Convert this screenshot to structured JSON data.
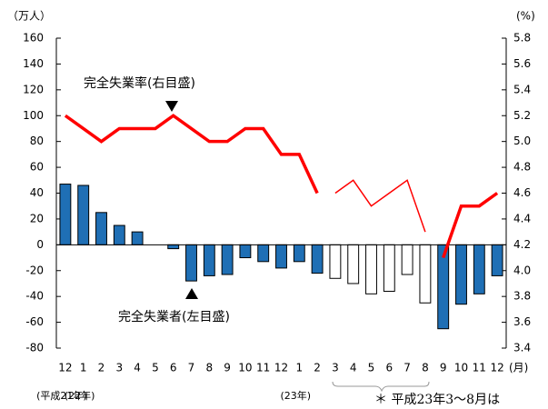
{
  "chart_data": {
    "type": "bar-line",
    "ylabel": "（万人）",
    "y2label": "(%)",
    "xunit": "(月)",
    "categories": [
      "12",
      "1",
      "2",
      "3",
      "4",
      "5",
      "6",
      "7",
      "8",
      "9",
      "10",
      "11",
      "12",
      "1",
      "2",
      "3",
      "4",
      "5",
      "6",
      "7",
      "8",
      "9",
      "10",
      "11",
      "12"
    ],
    "year_labels": [
      {
        "index": 0,
        "label": "(平成21年)"
      },
      {
        "index": 1,
        "label": "(22年)"
      },
      {
        "index": 13,
        "label": "(23年)"
      }
    ],
    "series": [
      {
        "name": "完全失業者(左目盛)",
        "kind": "bar",
        "color": "#1f6fb5",
        "colors": [
          "#1f6fb5",
          "#1f6fb5",
          "#1f6fb5",
          "#1f6fb5",
          "#1f6fb5",
          "#1f6fb5",
          "#1f6fb5",
          "#1f6fb5",
          "#1f6fb5",
          "#1f6fb5",
          "#1f6fb5",
          "#1f6fb5",
          "#1f6fb5",
          "#1f6fb5",
          "#1f6fb5",
          "#ffffff",
          "#ffffff",
          "#ffffff",
          "#ffffff",
          "#ffffff",
          "#ffffff",
          "#1f6fb5",
          "#1f6fb5",
          "#1f6fb5",
          "#1f6fb5"
        ],
        "values": [
          47,
          46,
          25,
          15,
          10,
          0,
          -3,
          -28,
          -24,
          -23,
          -10,
          -13,
          -18,
          -13,
          -22,
          -26,
          -30,
          -38,
          -36,
          -23,
          -45,
          -65,
          -46,
          -38,
          -24
        ]
      },
      {
        "name": "完全失業率(右目盛)",
        "kind": "line",
        "axis": "y2",
        "color": "#ff0000",
        "width": 3.5,
        "values": [
          5.2,
          5.1,
          5.0,
          5.1,
          5.1,
          5.1,
          5.2,
          5.1,
          5.0,
          5.0,
          5.1,
          5.1,
          4.9,
          4.9,
          4.6,
          null,
          null,
          null,
          null,
          null,
          null,
          4.1,
          4.5,
          4.5,
          4.6
        ]
      },
      {
        "kind": "line",
        "axis": "y2",
        "color": "#ff0000",
        "width": 1.5,
        "values": [
          null,
          null,
          null,
          null,
          null,
          null,
          null,
          null,
          null,
          null,
          null,
          null,
          null,
          null,
          null,
          4.6,
          4.7,
          4.5,
          4.6,
          4.7,
          4.3,
          null,
          null,
          null,
          null
        ]
      }
    ],
    "ylim": [
      -80,
      160
    ],
    "yticks": [
      -80,
      -60,
      -40,
      -20,
      0,
      20,
      40,
      60,
      80,
      100,
      120,
      140,
      160
    ],
    "y2lim": [
      3.4,
      5.8
    ],
    "y2ticks": [
      3.4,
      3.6,
      3.8,
      {
        "value": 4,
        "label": "4.0"
      },
      4.2,
      4.4,
      4.6,
      4.8,
      {
        "value": 5,
        "label": "5.0"
      },
      5.2,
      5.4,
      5.6,
      5.8
    ],
    "footnote": "＊ 平成23年3～8月は"
  }
}
